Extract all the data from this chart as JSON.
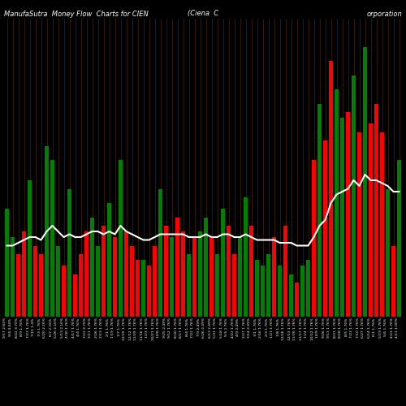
{
  "title_left": "ManufaSutra  Money Flow  Charts for CIEN",
  "title_center": "(Ciena  C",
  "title_right": "orporation",
  "background_color": "#000000",
  "bar_width": 0.7,
  "bar_colors": [
    "green",
    "green",
    "red",
    "red",
    "green",
    "red",
    "red",
    "green",
    "green",
    "green",
    "red",
    "green",
    "red",
    "red",
    "red",
    "green",
    "green",
    "red",
    "green",
    "red",
    "green",
    "red",
    "red",
    "red",
    "green",
    "red",
    "red",
    "green",
    "red",
    "green",
    "red",
    "red",
    "green",
    "red",
    "green",
    "green",
    "red",
    "green",
    "green",
    "red",
    "red",
    "green",
    "green",
    "red",
    "green",
    "green",
    "green",
    "red",
    "green",
    "red",
    "green",
    "red",
    "green",
    "green",
    "red",
    "green",
    "red",
    "red",
    "green",
    "green",
    "red",
    "green",
    "red",
    "green",
    "red",
    "red",
    "red",
    "green",
    "red",
    "green"
  ],
  "bar_values": [
    0.38,
    0.28,
    0.22,
    0.3,
    0.48,
    0.25,
    0.22,
    0.6,
    0.55,
    0.25,
    0.18,
    0.45,
    0.15,
    0.22,
    0.3,
    0.35,
    0.25,
    0.32,
    0.4,
    0.28,
    0.55,
    0.3,
    0.25,
    0.2,
    0.2,
    0.18,
    0.25,
    0.45,
    0.32,
    0.28,
    0.35,
    0.3,
    0.22,
    0.28,
    0.3,
    0.35,
    0.28,
    0.22,
    0.38,
    0.32,
    0.22,
    0.28,
    0.42,
    0.32,
    0.2,
    0.18,
    0.22,
    0.28,
    0.18,
    0.32,
    0.15,
    0.12,
    0.18,
    0.2,
    0.55,
    0.75,
    0.62,
    0.9,
    0.8,
    0.7,
    0.72,
    0.85,
    0.65,
    0.95,
    0.68,
    0.75,
    0.65,
    0.45,
    0.25,
    0.55
  ],
  "line_values": [
    0.25,
    0.25,
    0.26,
    0.27,
    0.28,
    0.28,
    0.27,
    0.3,
    0.32,
    0.3,
    0.28,
    0.29,
    0.28,
    0.28,
    0.29,
    0.3,
    0.3,
    0.29,
    0.3,
    0.29,
    0.32,
    0.3,
    0.29,
    0.28,
    0.27,
    0.27,
    0.28,
    0.29,
    0.29,
    0.29,
    0.29,
    0.29,
    0.28,
    0.28,
    0.28,
    0.29,
    0.28,
    0.28,
    0.29,
    0.29,
    0.28,
    0.28,
    0.29,
    0.28,
    0.27,
    0.27,
    0.27,
    0.27,
    0.26,
    0.26,
    0.26,
    0.25,
    0.25,
    0.25,
    0.28,
    0.32,
    0.34,
    0.4,
    0.43,
    0.44,
    0.45,
    0.48,
    0.46,
    0.5,
    0.48,
    0.48,
    0.47,
    0.46,
    0.44,
    0.44
  ],
  "grid_color": "#5a3000",
  "x_labels": [
    "9/17 2.83%",
    "9/4 4.04%",
    "8/22 3.70%",
    "8/9 1.76%",
    "7/27 1.76%",
    "7/15 1.4%",
    "7/3 1.76%",
    "6/20 2.16%",
    "6/7 2.16%",
    "5/26 2.16%",
    "5/13 2.16%",
    "4/30 1.76%",
    "4/17 1.76%",
    "4/4 1.76%",
    "3/22 3.70%",
    "3/11 1.76%",
    "2/26 1.76%",
    "2/13 1.76%",
    "2/1 1.76%",
    "1/19 1.76%",
    "1/7 1.76%",
    "12/25 1.76%",
    "12/12 1.76%",
    "11/29 1.76%",
    "11/16 1.76%",
    "11/3 1.76%",
    "10/21 1.76%",
    "10/8 1.76%",
    "9/25 2.49%",
    "9/12 1.76%",
    "8/30 1.76%",
    "8/17 1.76%",
    "8/4 1.76%",
    "7/22 1.76%",
    "7/9 2.49%",
    "6/26 2.49%",
    "6/13 2.49%",
    "5/31 1.76%",
    "5/18 1.76%",
    "5/5 1.76%",
    "4/22 1.76%",
    "4/9 2.49%",
    "3/27 1.76%",
    "3/14 2.49%",
    "3/1 1.76%",
    "2/16 1.76%",
    "2/3 1.76%",
    "1/21 1.76%",
    "1/8 1.76%",
    "12/26 1.76%",
    "12/13 1.76%",
    "11/30 1.76%",
    "11/17 1.76%",
    "11/4 1.76%",
    "10/22 1.76%",
    "10/9 1.76%",
    "9/26 1.76%",
    "9/13 1.76%",
    "8/31 1.76%",
    "8/18 1.76%",
    "8/5 1.76%",
    "7/23 1.76%",
    "7/10 1.76%",
    "6/27 1.76%",
    "6/14 1.76%",
    "6/1 1.76%",
    "5/19 1.76%",
    "5/6 1.76%",
    "4/23 1.76%",
    "4/11 1.00%"
  ],
  "ylim": [
    0.0,
    1.05
  ],
  "figsize": [
    5.0,
    5.0
  ],
  "dpi": 100
}
